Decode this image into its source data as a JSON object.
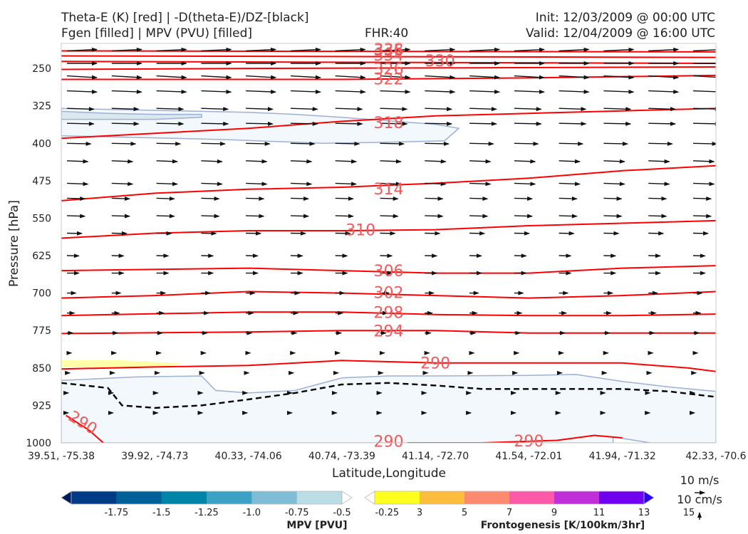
{
  "header": {
    "left_line1": "Theta-E (K) [red] | -D(theta-E)/DZ-[black]",
    "left_line2": "Fgen [filled] | MPV (PVU) [filled]",
    "center": "FHR:40",
    "right_line1": "Init: 12/03/2009 @ 00:00 UTC",
    "right_line2": "Valid: 12/04/2009 @ 16:00 UTC"
  },
  "chart_data": {
    "type": "cross-section",
    "xlabel": "Latitude,Longitude",
    "ylabel": "Pressure [hPa]",
    "x_ticks": [
      "39.51, -75.38",
      "39.92, -74.73",
      "40.33, -74.06",
      "40.74, -73.39",
      "41.14, -72.70",
      "41.54, -72.01",
      "41.94, -71.32",
      "42.33, -70.6"
    ],
    "y_ticks": [
      250,
      325,
      400,
      475,
      550,
      625,
      700,
      775,
      850,
      925,
      1000
    ],
    "ylim": [
      1000,
      200
    ],
    "x_range": [
      0,
      7
    ],
    "theta_e_contours": [
      {
        "label": "338",
        "points": [
          [
            0,
            215
          ],
          [
            7,
            217
          ]
        ]
      },
      {
        "label": "334",
        "points": [
          [
            0,
            225
          ],
          [
            7,
            228
          ]
        ]
      },
      {
        "label": "330",
        "points": [
          [
            0,
            236
          ],
          [
            7,
            240
          ]
        ]
      },
      {
        "label": "326",
        "points": [
          [
            0,
            252
          ],
          [
            2,
            250
          ],
          [
            4,
            249
          ],
          [
            7,
            247
          ]
        ]
      },
      {
        "label": "322",
        "points": [
          [
            0,
            272
          ],
          [
            3,
            272
          ],
          [
            5,
            269
          ],
          [
            7,
            264
          ]
        ]
      },
      {
        "label": "318",
        "points": [
          [
            0,
            390
          ],
          [
            1,
            380
          ],
          [
            2,
            370
          ],
          [
            3,
            356
          ],
          [
            4,
            345
          ],
          [
            5,
            340
          ],
          [
            6,
            335
          ],
          [
            7,
            330
          ]
        ]
      },
      {
        "label": "314",
        "points": [
          [
            0,
            515
          ],
          [
            1,
            500
          ],
          [
            2,
            492
          ],
          [
            3,
            488
          ],
          [
            4,
            480
          ],
          [
            5,
            470
          ],
          [
            6,
            455
          ],
          [
            7,
            445
          ]
        ]
      },
      {
        "label": "310",
        "points": [
          [
            0,
            590
          ],
          [
            1,
            580
          ],
          [
            2,
            575
          ],
          [
            3,
            575
          ],
          [
            4,
            573
          ],
          [
            5,
            565
          ],
          [
            6,
            560
          ],
          [
            7,
            555
          ]
        ]
      },
      {
        "label": "306",
        "points": [
          [
            0,
            655
          ],
          [
            2,
            650
          ],
          [
            3,
            655
          ],
          [
            4,
            660
          ],
          [
            5,
            660
          ],
          [
            6,
            650
          ],
          [
            7,
            645
          ]
        ]
      },
      {
        "label": "302",
        "points": [
          [
            0,
            710
          ],
          [
            1,
            705
          ],
          [
            2,
            697
          ],
          [
            3,
            700
          ],
          [
            4,
            705
          ],
          [
            5,
            710
          ],
          [
            6,
            705
          ],
          [
            7,
            697
          ]
        ]
      },
      {
        "label": "298",
        "points": [
          [
            0,
            745
          ],
          [
            2,
            738
          ],
          [
            3,
            738
          ],
          [
            4,
            743
          ],
          [
            5,
            745
          ],
          [
            6,
            745
          ],
          [
            7,
            742
          ]
        ]
      },
      {
        "label": "294",
        "points": [
          [
            0,
            781
          ],
          [
            2,
            778
          ],
          [
            3,
            775
          ],
          [
            4,
            775
          ],
          [
            5,
            780
          ],
          [
            6,
            780
          ],
          [
            7,
            780
          ]
        ]
      },
      {
        "label": "290",
        "points": [
          [
            0,
            852
          ],
          [
            1,
            848
          ],
          [
            2,
            845
          ],
          [
            3,
            835
          ],
          [
            4,
            840
          ],
          [
            5,
            840
          ],
          [
            6,
            840
          ],
          [
            6.7,
            850
          ],
          [
            7,
            857
          ]
        ]
      },
      {
        "label": "290",
        "points": [
          [
            0.05,
            945
          ],
          [
            0.3,
            975
          ],
          [
            0.45,
            1000
          ]
        ]
      },
      {
        "label": "290",
        "points": [
          [
            3.7,
            1000
          ],
          [
            4.5,
            1000
          ],
          [
            5.3,
            995
          ],
          [
            5.7,
            985
          ],
          [
            6,
            990
          ]
        ]
      }
    ],
    "theta_e_label_positions": [
      {
        "text": "338",
        "x": 3.5,
        "p": 212
      },
      {
        "text": "336",
        "x": 3.5,
        "p": 214
      },
      {
        "text": "334",
        "x": 3.5,
        "p": 224
      },
      {
        "text": "330",
        "x": 4.05,
        "p": 236
      },
      {
        "text": "326",
        "x": 3.5,
        "p": 252
      },
      {
        "text": "322",
        "x": 3.5,
        "p": 272
      },
      {
        "text": "318",
        "x": 3.5,
        "p": 360
      },
      {
        "text": "314",
        "x": 3.5,
        "p": 492
      },
      {
        "text": "310",
        "x": 3.2,
        "p": 574
      },
      {
        "text": "306",
        "x": 3.5,
        "p": 656
      },
      {
        "text": "302",
        "x": 3.5,
        "p": 700
      },
      {
        "text": "298",
        "x": 3.5,
        "p": 740
      },
      {
        "text": "294",
        "x": 3.5,
        "p": 777
      },
      {
        "text": "290",
        "x": 4.0,
        "p": 841
      },
      {
        "text": "290",
        "x": 0.23,
        "p": 960
      },
      {
        "text": "290",
        "x": 3.5,
        "p": 998
      },
      {
        "text": "290",
        "x": 5.0,
        "p": 997
      }
    ],
    "stability_contour": {
      "style": "dashed",
      "color": "#000000",
      "points": [
        [
          0,
          880
        ],
        [
          0.5,
          890
        ],
        [
          0.65,
          925
        ],
        [
          1,
          930
        ],
        [
          1.5,
          925
        ],
        [
          2,
          913
        ],
        [
          2.5,
          900
        ],
        [
          3,
          883
        ],
        [
          3.5,
          880
        ],
        [
          4,
          885
        ],
        [
          4.5,
          892
        ],
        [
          5,
          892
        ],
        [
          5.5,
          892
        ],
        [
          6,
          892
        ],
        [
          6.5,
          897
        ],
        [
          7,
          908
        ]
      ]
    },
    "mpv_regions": [
      {
        "level": -0.25,
        "color": "#f2f8fb",
        "points": [
          [
            0,
            330
          ],
          [
            0.5,
            332
          ],
          [
            1,
            334
          ],
          [
            1.5,
            336
          ],
          [
            2,
            338
          ],
          [
            2.5,
            342
          ],
          [
            3,
            348
          ],
          [
            3.5,
            355
          ],
          [
            4,
            362
          ],
          [
            4.25,
            370
          ],
          [
            4.1,
            395
          ],
          [
            3.5,
            398
          ],
          [
            2.8,
            400
          ],
          [
            2.5,
            398
          ],
          [
            1.8,
            393
          ],
          [
            1.2,
            390
          ],
          [
            0,
            385
          ]
        ]
      },
      {
        "level": -0.5,
        "color": "#dbe9ef",
        "points": [
          [
            0,
            336
          ],
          [
            0.5,
            340
          ],
          [
            1,
            342
          ],
          [
            1.5,
            342
          ],
          [
            1.5,
            348
          ],
          [
            1,
            352
          ],
          [
            0.5,
            352
          ],
          [
            0,
            352
          ]
        ]
      },
      {
        "level": -0.25,
        "color": "#f2f8fb",
        "points": [
          [
            0,
            875
          ],
          [
            0.8,
            868
          ],
          [
            1.5,
            866
          ],
          [
            1.65,
            895
          ],
          [
            2,
            900
          ],
          [
            2.5,
            895
          ],
          [
            3,
            870
          ],
          [
            3.5,
            866
          ],
          [
            4,
            866
          ],
          [
            5,
            865
          ],
          [
            5.5,
            863
          ],
          [
            6,
            877
          ],
          [
            6.5,
            888
          ],
          [
            7,
            897
          ],
          [
            7,
            1000
          ],
          [
            6.3,
            1000
          ],
          [
            5.9,
            988
          ],
          [
            5.9,
            1000
          ],
          [
            0,
            1000
          ]
        ]
      }
    ],
    "fgen_regions": [
      {
        "level": 3,
        "color": "#ffffa8",
        "points": [
          [
            0,
            834
          ],
          [
            0.6,
            834
          ],
          [
            1.0,
            838
          ],
          [
            1.3,
            840
          ],
          [
            1.1,
            848
          ],
          [
            0,
            848
          ]
        ]
      }
    ],
    "wind_rows": [
      {
        "p": 215,
        "u": 10,
        "w": 0.5
      },
      {
        "p": 240,
        "u": 10,
        "w": 0
      },
      {
        "p": 265,
        "u": 10,
        "w": -0.6
      },
      {
        "p": 295,
        "u": 10,
        "w": -0.4
      },
      {
        "p": 330,
        "u": 9,
        "w": -0.3
      },
      {
        "p": 360,
        "u": 9,
        "w": -0.2
      },
      {
        "p": 400,
        "u": 8,
        "w": -0.2
      },
      {
        "p": 435,
        "u": 7,
        "w": -0.3
      },
      {
        "p": 480,
        "u": 7,
        "w": -0.3
      },
      {
        "p": 510,
        "u": 6,
        "w": -0.2
      },
      {
        "p": 545,
        "u": 6,
        "w": -0.2
      },
      {
        "p": 580,
        "u": 5,
        "w": -0.1
      },
      {
        "p": 625,
        "u": 4,
        "w": -0.1
      },
      {
        "p": 660,
        "u": 4,
        "w": 0
      },
      {
        "p": 700,
        "u": 3,
        "w": 0
      },
      {
        "p": 740,
        "u": 2.5,
        "w": 0
      },
      {
        "p": 780,
        "u": 2,
        "w": 0
      },
      {
        "p": 820,
        "u": 1.5,
        "w": 0
      },
      {
        "p": 860,
        "u": 1,
        "w": 0
      },
      {
        "p": 900,
        "u": 0.5,
        "w": 0
      },
      {
        "p": 940,
        "u": 0.3,
        "w": 0
      }
    ],
    "reference_vector": {
      "horizontal_label": "10 m/s",
      "vertical_label": "10 cm/s"
    }
  },
  "colorbar_mpv": {
    "title": "MPV [PVU]",
    "labels": [
      "-1.75",
      "-1.5",
      "-1.25",
      "-1.0",
      "-0.75",
      "-0.5",
      "-0.25"
    ],
    "colors": [
      "#001a5e",
      "#003c85",
      "#006098",
      "#0085a9",
      "#3ca2c5",
      "#7fbdd6",
      "#bbdde6",
      "#ffffff"
    ]
  },
  "colorbar_fgen": {
    "title": "Frontogenesis [K/100km/3hr]",
    "labels": [
      "3",
      "5",
      "7",
      "9",
      "11",
      "13",
      "15"
    ],
    "colors": [
      "#ffffff",
      "#ffff1e",
      "#fcbe3c",
      "#fc8a6e",
      "#fc5aa8",
      "#c030d8",
      "#7000f0",
      "#2a00f4"
    ]
  },
  "colors": {
    "theta_e": "#ff0000",
    "label_red": "#f05a5a",
    "frame": "#cccccc",
    "mpv_edge": "#9db0d5"
  }
}
